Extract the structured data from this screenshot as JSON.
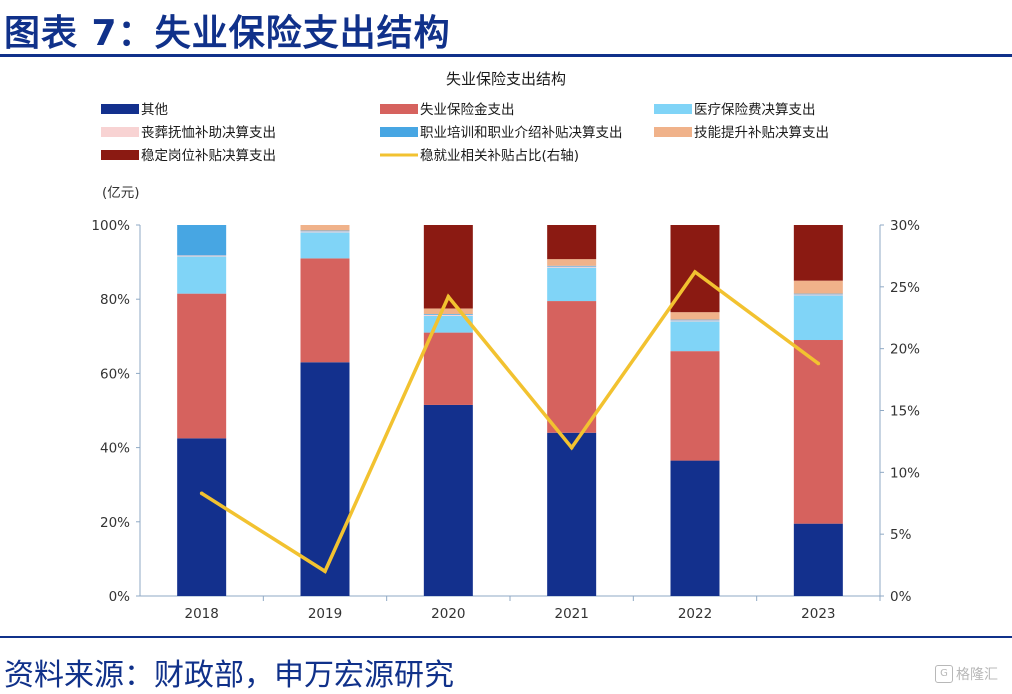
{
  "header": {
    "figure_title": "图表 7：失业保险支出结构"
  },
  "footer": {
    "source": "资料来源：财政部，申万宏源研究",
    "watermark": "格隆汇"
  },
  "chart_data": {
    "type": "bar",
    "stacked": true,
    "title": "失业保险支出结构",
    "unit_label": "(亿元)",
    "categories": [
      "2018",
      "2019",
      "2020",
      "2021",
      "2022",
      "2023"
    ],
    "y_left": {
      "ticks": [
        "0%",
        "20%",
        "40%",
        "60%",
        "80%",
        "100%"
      ],
      "range": [
        0,
        100
      ]
    },
    "y_right": {
      "ticks": [
        "0%",
        "5%",
        "10%",
        "15%",
        "20%",
        "25%",
        "30%"
      ],
      "range": [
        0,
        30
      ]
    },
    "series": [
      {
        "name": "其他",
        "type": "bar",
        "color": "#13308d",
        "values": [
          42.5,
          63,
          51.5,
          44,
          36.5,
          19.5
        ]
      },
      {
        "name": "失业保险金支出",
        "type": "bar",
        "color": "#d6625e",
        "values": [
          39,
          28,
          19.5,
          35.5,
          29.5,
          49.5
        ]
      },
      {
        "name": "医疗保险费决算支出",
        "type": "bar",
        "color": "#80d4f7",
        "values": [
          10,
          7,
          4.5,
          9,
          8,
          12
        ]
      },
      {
        "name": "丧葬抚恤补助决算支出",
        "type": "bar",
        "color": "#f8d3d3",
        "values": [
          0.3,
          0.3,
          0.3,
          0.3,
          0.3,
          0.3
        ]
      },
      {
        "name": "职业培训和职业介绍补贴决算支出",
        "type": "bar",
        "color": "#47a6e3",
        "values": [
          8.2,
          0.2,
          0.2,
          0.2,
          0.2,
          0.2
        ]
      },
      {
        "name": "技能提升补贴决算支出",
        "type": "bar",
        "color": "#f0b28a",
        "values": [
          0,
          1.5,
          1.5,
          1.8,
          2,
          3.5
        ]
      },
      {
        "name": "稳定岗位补贴决算支出",
        "type": "bar",
        "color": "#8b1a12",
        "values": [
          0,
          0,
          22.5,
          9.2,
          23.5,
          15
        ]
      },
      {
        "name": "稳就业相关补贴占比(右轴)",
        "type": "line",
        "axis": "right",
        "color": "#f2c230",
        "values": [
          8.3,
          2,
          24.2,
          12,
          26.2,
          18.8
        ]
      }
    ],
    "legend_position": "top",
    "grid": false
  }
}
